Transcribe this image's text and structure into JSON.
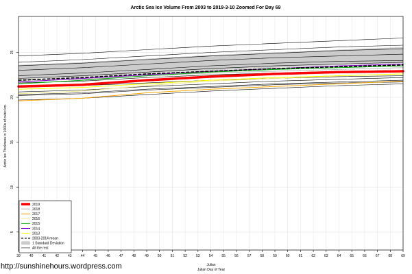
{
  "chart_data": {
    "type": "line",
    "title": "Arctic Sea Ice Volume From 2003 to 2019-3-10 Zoomed For Day 69",
    "xlabel": "Julian",
    "xlabel2": "Julian Day of Year",
    "ylabel": "Arctic Ice Thickness in 1000s of cubic km.",
    "xlim": [
      39,
      69
    ],
    "ylim": [
      3,
      29
    ],
    "xticks": [
      39,
      40,
      41,
      42,
      43,
      44,
      45,
      46,
      47,
      48,
      49,
      50,
      51,
      52,
      53,
      54,
      55,
      56,
      57,
      58,
      59,
      60,
      61,
      62,
      63,
      64,
      65,
      66,
      67,
      68,
      69
    ],
    "yticks": [
      5,
      10,
      15,
      20,
      25
    ],
    "grid": true,
    "x": [
      39,
      44,
      49,
      54,
      59,
      64,
      69
    ],
    "std_band": {
      "name": "1 Standard Deviation",
      "color": "#cccccc",
      "lower": [
        22.0,
        22.3,
        22.7,
        23.0,
        23.3,
        23.6,
        23.8
      ],
      "upper": [
        23.6,
        23.9,
        24.3,
        24.7,
        25.0,
        25.3,
        25.6
      ]
    },
    "series": [
      {
        "name": "2019",
        "color": "#ff0000",
        "width": 3.5,
        "dash": "",
        "values": [
          21.2,
          21.4,
          21.9,
          22.3,
          22.6,
          22.8,
          22.9
        ]
      },
      {
        "name": "2018",
        "color": "#bbbbbb",
        "width": 1,
        "dash": "",
        "values": [
          21.8,
          22.0,
          22.4,
          22.7,
          22.9,
          23.1,
          23.3
        ]
      },
      {
        "name": "2017",
        "color": "#ffa500",
        "width": 1,
        "dash": "",
        "values": [
          19.6,
          19.9,
          20.5,
          20.9,
          21.2,
          21.5,
          21.8
        ]
      },
      {
        "name": "2016",
        "color": "#f0e68c",
        "width": 1,
        "dash": "",
        "values": [
          20.4,
          20.7,
          21.3,
          21.8,
          22.1,
          22.4,
          22.6
        ]
      },
      {
        "name": "2015",
        "color": "#00aa00",
        "width": 1,
        "dash": "",
        "values": [
          21.5,
          21.9,
          22.4,
          22.8,
          23.1,
          23.3,
          23.5
        ]
      },
      {
        "name": "2014",
        "color": "#8800cc",
        "width": 1,
        "dash": "",
        "values": [
          21.7,
          22.1,
          22.5,
          22.9,
          23.2,
          23.5,
          23.7
        ]
      },
      {
        "name": "2013",
        "color": "#ffff00",
        "width": 1,
        "dash": "",
        "values": [
          20.9,
          21.1,
          21.5,
          21.9,
          22.2,
          22.4,
          22.6
        ]
      },
      {
        "name": "2003-2014 mean",
        "color": "#000000",
        "width": 1.6,
        "dash": "4,3",
        "values": [
          21.9,
          22.2,
          22.6,
          22.9,
          23.2,
          23.4,
          23.6
        ]
      }
    ],
    "other_years": {
      "name": "All the rest",
      "color": "#000000",
      "lines": [
        [
          24.6,
          24.9,
          25.3,
          25.7,
          26.0,
          26.3,
          26.6
        ],
        [
          23.9,
          24.2,
          24.6,
          25.0,
          25.3,
          25.6,
          25.8
        ],
        [
          23.5,
          23.8,
          24.2,
          24.6,
          24.9,
          25.2,
          25.4
        ],
        [
          23.0,
          23.3,
          23.7,
          24.1,
          24.4,
          24.6,
          24.8
        ],
        [
          22.4,
          22.7,
          23.1,
          23.5,
          23.8,
          24.0,
          24.1
        ],
        [
          22.1,
          22.4,
          22.8,
          23.2,
          23.5,
          23.7,
          23.9
        ],
        [
          21.6,
          21.8,
          22.2,
          22.5,
          22.7,
          22.9,
          23.0
        ],
        [
          21.1,
          21.3,
          21.6,
          21.9,
          22.1,
          22.3,
          22.4
        ],
        [
          20.6,
          20.8,
          21.2,
          21.5,
          21.8,
          22.0,
          22.2
        ],
        [
          20.3,
          20.5,
          20.9,
          21.2,
          21.5,
          21.7,
          21.9
        ],
        [
          20.2,
          20.4,
          20.8,
          21.1,
          21.4,
          21.6,
          21.7
        ],
        [
          19.7,
          19.9,
          20.3,
          20.7,
          21.0,
          21.3,
          21.5
        ]
      ]
    },
    "legend": {
      "placement": "bottom-left",
      "entries": [
        {
          "label": "2019",
          "color": "#ff0000",
          "kind": "thick"
        },
        {
          "label": "2018",
          "color": "#bbbbbb",
          "kind": "line"
        },
        {
          "label": "2017",
          "color": "#ffa500",
          "kind": "line"
        },
        {
          "label": "2016",
          "color": "#f0e68c",
          "kind": "line"
        },
        {
          "label": "2015",
          "color": "#00aa00",
          "kind": "line"
        },
        {
          "label": "2014",
          "color": "#8800cc",
          "kind": "line"
        },
        {
          "label": "2013",
          "color": "#ffff00",
          "kind": "line"
        },
        {
          "label": "2003-2014 mean",
          "color": "#000000",
          "kind": "dash"
        },
        {
          "label": "1 Standard Deviation",
          "color": "#cccccc",
          "kind": "band"
        },
        {
          "label": "All the rest",
          "color": "#000000",
          "kind": "thin"
        }
      ]
    }
  },
  "footer": {
    "url": "http://sunshinehours.wordpress.com"
  }
}
